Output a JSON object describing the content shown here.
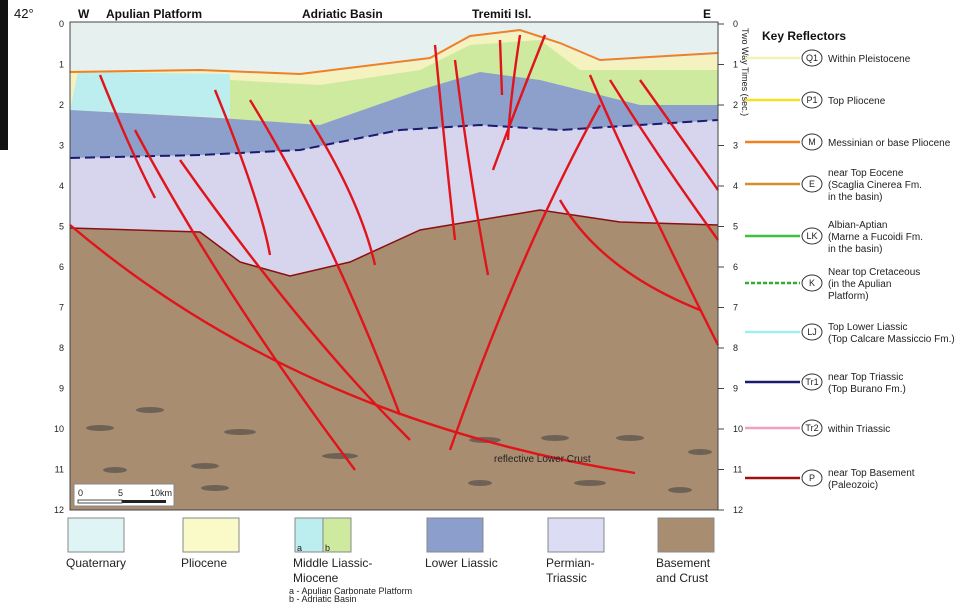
{
  "corner_label": "42°",
  "section": {
    "labels": {
      "west": "W",
      "apulian_platform": "Apulian Platform",
      "adriatic_basin": "Adriatic Basin",
      "tremiti": "Tremiti Isl.",
      "east": "E"
    },
    "left_axis": [
      0,
      1,
      2,
      3,
      4,
      5,
      6,
      7,
      8,
      9,
      10,
      11,
      12
    ],
    "right_axis": [
      0,
      1,
      2,
      3,
      4,
      5,
      6,
      7,
      8,
      9,
      10,
      11,
      12
    ],
    "right_axis_title": "Two Way Times (sec.)",
    "annotation": "reflective Lower Crust",
    "scale_bar": [
      "0",
      "5",
      "10km"
    ]
  },
  "key": {
    "title": "Key Reflectors",
    "items": [
      {
        "code": "Q1",
        "lines": [
          "Within Pleistocene"
        ]
      },
      {
        "code": "P1",
        "lines": [
          "Top Pliocene"
        ]
      },
      {
        "code": "M",
        "lines": [
          "Messinian or base Pliocene"
        ]
      },
      {
        "code": "E",
        "lines": [
          "near Top Eocene",
          "(Scaglia Cinerea Fm.",
          "in the basin)"
        ]
      },
      {
        "code": "LK",
        "lines": [
          "Albian-Aptian",
          "(Marne a Fucoidi Fm.",
          "in the basin)"
        ]
      },
      {
        "code": "K",
        "lines": [
          "Near top Cretaceous",
          "(in the Apulian",
          "Platform)"
        ]
      },
      {
        "code": "LJ",
        "lines": [
          "Top Lower Liassic",
          "(Top Calcare Massiccio Fm.)"
        ]
      },
      {
        "code": "Tr1",
        "lines": [
          "near Top Triassic",
          "(Top Burano Fm.)"
        ]
      },
      {
        "code": "Tr2",
        "lines": [
          "within Triassic"
        ]
      },
      {
        "code": "P",
        "lines": [
          "near Top Basement",
          "(Paleozoic)"
        ]
      }
    ]
  },
  "units": [
    {
      "lines": [
        "Quaternary"
      ]
    },
    {
      "lines": [
        "Pliocene"
      ]
    },
    {
      "lines": [
        "Middle Liassic-",
        "Miocene"
      ],
      "parts": [
        "a",
        "b"
      ],
      "notes": [
        "a - Apulian Carbonate Platform",
        "b - Adriatic Basin"
      ]
    },
    {
      "lines": [
        "Lower Liassic"
      ]
    },
    {
      "lines": [
        "Permian-",
        "Triassic"
      ]
    },
    {
      "lines": [
        "Basement",
        "and Crust"
      ]
    }
  ]
}
